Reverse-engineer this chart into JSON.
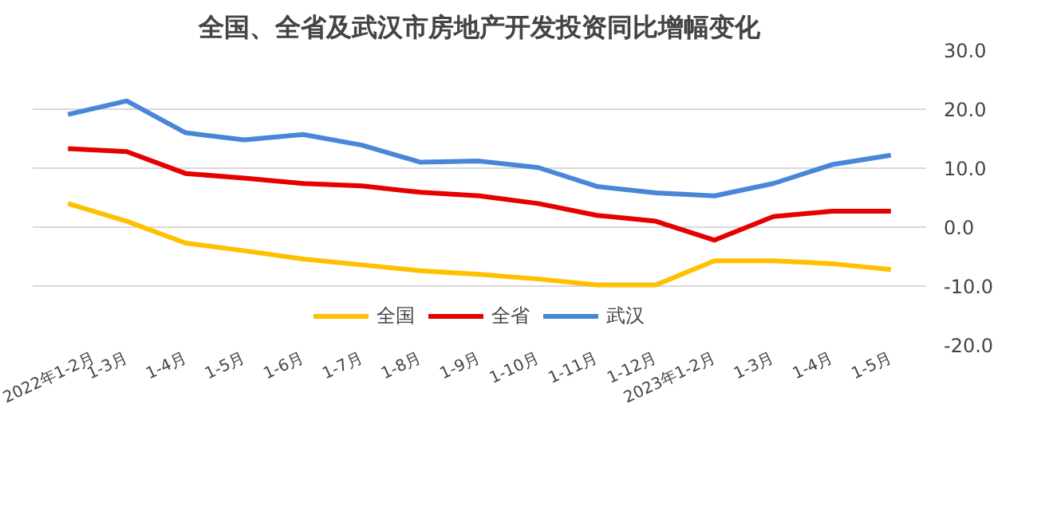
{
  "chart_data": {
    "type": "line",
    "title": "全国、全省及武汉市房地产开发投资同比增幅变化",
    "categories": [
      "2022年1-2月",
      "1-3月",
      "1-4月",
      "1-5月",
      "1-6月",
      "1-7月",
      "1-8月",
      "1-9月",
      "1-10月",
      "1-11月",
      "1-12月",
      "2023年1-2月",
      "1-3月",
      "1-4月",
      "1-5月"
    ],
    "series": [
      {
        "name": "全国",
        "color": "#ffc000",
        "values": [
          4.0,
          1.0,
          -2.7,
          -4.0,
          -5.4,
          -6.4,
          -7.4,
          -8.0,
          -8.8,
          -9.8,
          -9.8,
          -5.7,
          -5.7,
          -6.2,
          -7.2
        ]
      },
      {
        "name": "全省",
        "color": "#e60000",
        "values": [
          13.3,
          12.8,
          9.1,
          8.3,
          7.4,
          7.0,
          5.9,
          5.3,
          4.0,
          2.0,
          1.0,
          -2.2,
          1.8,
          2.7,
          2.7
        ]
      },
      {
        "name": "武汉",
        "color": "#4a86d8",
        "values": [
          19.1,
          21.4,
          16.0,
          14.8,
          15.7,
          13.9,
          11.0,
          11.2,
          10.1,
          6.9,
          5.8,
          5.3,
          7.4,
          10.6,
          12.2
        ]
      }
    ],
    "ylim": [
      -20,
      30
    ],
    "yticks": [
      {
        "value": -20,
        "label": "-20.0"
      },
      {
        "value": -10,
        "label": "-10.0"
      },
      {
        "value": 0,
        "label": "0.0"
      },
      {
        "value": 10,
        "label": "10.0"
      },
      {
        "value": 20,
        "label": "20.0"
      },
      {
        "value": 30,
        "label": "30.0"
      }
    ],
    "grid": "y",
    "legend": "bottom",
    "marker": "none",
    "line_style": "solid"
  }
}
